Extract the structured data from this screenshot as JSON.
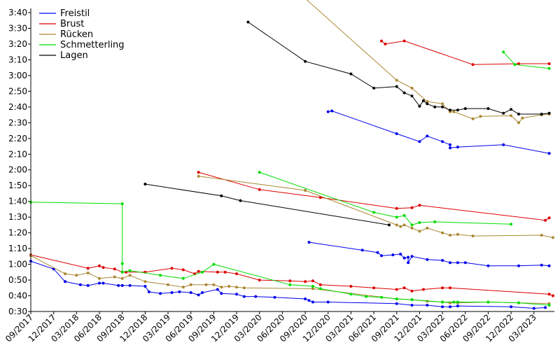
{
  "chart_data": {
    "type": "line",
    "y_axis": {
      "unit": "seconds",
      "ylim": [
        30,
        220
      ],
      "ticks": [
        {
          "value": 30,
          "label": "0:30"
        },
        {
          "value": 40,
          "label": "0:40"
        },
        {
          "value": 50,
          "label": "0:50"
        },
        {
          "value": 60,
          "label": "1:00"
        },
        {
          "value": 70,
          "label": "1:10"
        },
        {
          "value": 80,
          "label": "1:20"
        },
        {
          "value": 90,
          "label": "1:30"
        },
        {
          "value": 100,
          "label": "1:40"
        },
        {
          "value": 110,
          "label": "1:50"
        },
        {
          "value": 120,
          "label": "2:00"
        },
        {
          "value": 130,
          "label": "2:10"
        },
        {
          "value": 140,
          "label": "2:20"
        },
        {
          "value": 150,
          "label": "2:30"
        },
        {
          "value": 160,
          "label": "2:40"
        },
        {
          "value": 170,
          "label": "2:50"
        },
        {
          "value": 180,
          "label": "3:00"
        },
        {
          "value": 190,
          "label": "3:10"
        },
        {
          "value": 200,
          "label": "3:20"
        },
        {
          "value": 210,
          "label": "3:30"
        },
        {
          "value": 220,
          "label": "3:40"
        }
      ]
    },
    "x_axis": {
      "unit": "months since 09/2017",
      "xlim": [
        0,
        68.5
      ],
      "ticks": [
        {
          "value": 0,
          "label": "09/2017"
        },
        {
          "value": 3,
          "label": "12/2017"
        },
        {
          "value": 6,
          "label": "03/2018"
        },
        {
          "value": 9,
          "label": "06/2018"
        },
        {
          "value": 12,
          "label": "09/2018"
        },
        {
          "value": 15,
          "label": "12/2018"
        },
        {
          "value": 18,
          "label": "03/2019"
        },
        {
          "value": 21,
          "label": "06/2019"
        },
        {
          "value": 24,
          "label": "09/2019"
        },
        {
          "value": 27,
          "label": "12/2019"
        },
        {
          "value": 30,
          "label": "03/2020"
        },
        {
          "value": 33,
          "label": "06/2020"
        },
        {
          "value": 36,
          "label": "09/2020"
        },
        {
          "value": 39,
          "label": "12/2020"
        },
        {
          "value": 42,
          "label": "03/2021"
        },
        {
          "value": 45,
          "label": "06/2021"
        },
        {
          "value": 48,
          "label": "09/2021"
        },
        {
          "value": 51,
          "label": "12/2021"
        },
        {
          "value": 54,
          "label": "03/2022"
        },
        {
          "value": 57,
          "label": "06/2022"
        },
        {
          "value": 60,
          "label": "09/2022"
        },
        {
          "value": 63,
          "label": "12/2022"
        },
        {
          "value": 66,
          "label": "03/2023"
        }
      ]
    },
    "legend": {
      "position": "top-left"
    },
    "series": [
      {
        "name": "Freistil",
        "color": "#0000ee",
        "lines": [
          [
            [
              0,
              62
            ],
            [
              3,
              57
            ],
            [
              4.5,
              49
            ],
            [
              6.5,
              47
            ],
            [
              7.5,
              46.5
            ],
            [
              9,
              48
            ],
            [
              9.5,
              48
            ],
            [
              11.5,
              46.5
            ],
            [
              12,
              46.5
            ],
            [
              13,
              46.5
            ],
            [
              15,
              46
            ],
            [
              15.5,
              42.5
            ],
            [
              17,
              41.5
            ],
            [
              18.5,
              42
            ],
            [
              19.5,
              42.5
            ],
            [
              21,
              42
            ],
            [
              22,
              40.5
            ],
            [
              22.5,
              42
            ],
            [
              24.5,
              44
            ],
            [
              25,
              41.5
            ],
            [
              27,
              41
            ],
            [
              28,
              39.5
            ],
            [
              29.5,
              39.5
            ],
            [
              32,
              39
            ],
            [
              36,
              38
            ],
            [
              36.5,
              37
            ],
            [
              37,
              36
            ],
            [
              39,
              36
            ],
            [
              48,
              35
            ],
            [
              50,
              34
            ],
            [
              52,
              34
            ],
            [
              54,
              33
            ],
            [
              55,
              33
            ],
            [
              56,
              33.5
            ],
            [
              63,
              33
            ],
            [
              66,
              32
            ],
            [
              67.5,
              32.5
            ]
          ],
          [
            [
              36.5,
              74
            ],
            [
              43.5,
              69
            ],
            [
              45.5,
              67.5
            ],
            [
              46,
              65.5
            ],
            [
              47.5,
              66
            ],
            [
              48.5,
              66.5
            ],
            [
              49,
              64
            ],
            [
              49.5,
              64.5
            ],
            [
              49.5,
              61
            ],
            [
              50,
              65
            ],
            [
              52,
              63
            ],
            [
              54,
              62.5
            ],
            [
              55,
              61
            ],
            [
              56,
              61
            ],
            [
              57,
              61
            ],
            [
              60,
              59
            ],
            [
              64,
              59
            ],
            [
              67,
              59.5
            ],
            [
              68,
              59
            ]
          ],
          [
            [
              39,
              157
            ],
            [
              39.5,
              157.5
            ],
            [
              48,
              143
            ],
            [
              51,
              138
            ],
            [
              52,
              141.5
            ],
            [
              54,
              138
            ],
            [
              55,
              136
            ],
            [
              55,
              134
            ],
            [
              56,
              134.5
            ],
            [
              62,
              136
            ],
            [
              68,
              130.5
            ]
          ]
        ]
      },
      {
        "name": "Brust",
        "color": "#dd0000",
        "lines": [
          [
            [
              0,
              66
            ],
            [
              7.5,
              57.5
            ],
            [
              9,
              59
            ],
            [
              9.5,
              58
            ],
            [
              11,
              57
            ],
            [
              12,
              55
            ],
            [
              12.5,
              55
            ],
            [
              15,
              55
            ],
            [
              18.5,
              57.5
            ],
            [
              20,
              56.5
            ],
            [
              21.5,
              54
            ],
            [
              22,
              55.5
            ],
            [
              24.5,
              55
            ],
            [
              25.5,
              55
            ],
            [
              27,
              54
            ],
            [
              30,
              50
            ],
            [
              34,
              49.5
            ],
            [
              36,
              49
            ],
            [
              37,
              49.5
            ],
            [
              38,
              47
            ],
            [
              42,
              46
            ],
            [
              45,
              45
            ],
            [
              48,
              44
            ],
            [
              49,
              45
            ],
            [
              50,
              43
            ],
            [
              51.5,
              44
            ],
            [
              54,
              45
            ],
            [
              55,
              45
            ],
            [
              68,
              41
            ],
            [
              68.5,
              40
            ]
          ],
          [
            [
              22,
              118.5
            ],
            [
              30,
              107.5
            ],
            [
              38,
              102.5
            ],
            [
              48,
              95.5
            ],
            [
              50,
              96
            ],
            [
              51,
              97.5
            ],
            [
              67.5,
              88
            ],
            [
              68,
              89.5
            ]
          ],
          [
            [
              46,
              202
            ],
            [
              46.5,
              200
            ],
            [
              49,
              202
            ],
            [
              58,
              187
            ],
            [
              64,
              187.5
            ],
            [
              68,
              187.5
            ]
          ]
        ]
      },
      {
        "name": "Rücken",
        "color": "#aa8833",
        "lines": [
          [
            [
              0,
              65.5
            ],
            [
              4.5,
              54
            ],
            [
              6,
              53
            ],
            [
              7.5,
              54.5
            ],
            [
              9,
              51
            ],
            [
              11,
              52
            ],
            [
              12,
              51
            ],
            [
              13,
              53
            ],
            [
              15,
              49
            ],
            [
              18,
              47
            ],
            [
              20,
              45.5
            ],
            [
              21,
              47
            ],
            [
              23,
              47
            ],
            [
              24,
              47
            ],
            [
              25,
              45.5
            ],
            [
              26,
              46
            ],
            [
              27,
              45.5
            ],
            [
              28,
              45
            ],
            [
              37,
              44.5
            ],
            [
              48,
              38
            ],
            [
              50,
              37.5
            ],
            [
              52,
              36.5
            ],
            [
              54,
              36
            ],
            [
              55,
              35.5
            ],
            [
              56,
              35.5
            ],
            [
              60,
              36
            ],
            [
              64,
              35.5
            ],
            [
              68,
              35
            ]
          ],
          [
            [
              22,
              116
            ],
            [
              36,
              107
            ],
            [
              48,
              85
            ],
            [
              48.5,
              84
            ],
            [
              49,
              85
            ],
            [
              50,
              83
            ],
            [
              51,
              81
            ],
            [
              52,
              83
            ],
            [
              54,
              80
            ],
            [
              55,
              78.5
            ],
            [
              56,
              79
            ],
            [
              58,
              78
            ],
            [
              67,
              78.5
            ],
            [
              68.5,
              77
            ]
          ],
          [
            [
              36,
              229
            ],
            [
              48,
              177
            ],
            [
              50,
              172
            ],
            [
              52,
              163.5
            ],
            [
              54,
              162
            ],
            [
              55,
              157
            ],
            [
              55.5,
              157
            ],
            [
              58,
              152.5
            ],
            [
              59,
              154
            ],
            [
              63,
              154.5
            ],
            [
              64,
              150
            ],
            [
              64.5,
              153
            ],
            [
              67,
              155
            ],
            [
              68,
              155.5
            ]
          ]
        ]
      },
      {
        "name": "Schmetterling",
        "color": "#00dd00",
        "lines": [
          [
            [
              0,
              99.5
            ],
            [
              12,
              98.5
            ],
            [
              12,
              60.5
            ],
            [
              12,
              55
            ],
            [
              13,
              56
            ],
            [
              17,
              53
            ],
            [
              20,
              51
            ],
            [
              22.5,
              55
            ],
            [
              24,
              60
            ],
            [
              34,
              47
            ],
            [
              37,
              46
            ],
            [
              38,
              44.5
            ],
            [
              42,
              41
            ],
            [
              44,
              39.5
            ],
            [
              46,
              39
            ],
            [
              48,
              38
            ],
            [
              50,
              37.5
            ],
            [
              54,
              36
            ],
            [
              55.5,
              36
            ],
            [
              56,
              36
            ],
            [
              60,
              36
            ],
            [
              64,
              35.5
            ],
            [
              68,
              34
            ]
          ],
          [
            [
              30,
              118.5
            ],
            [
              45,
              93
            ],
            [
              48,
              90
            ],
            [
              49,
              91
            ],
            [
              50,
              85
            ],
            [
              51,
              86.5
            ],
            [
              53,
              87
            ],
            [
              63,
              85.5
            ]
          ],
          [
            [
              62,
              195
            ],
            [
              63.5,
              187
            ],
            [
              68,
              184.5
            ]
          ]
        ]
      },
      {
        "name": "Lagen",
        "color": "#000000",
        "lines": [
          [
            [
              15,
              111
            ],
            [
              25,
              103.5
            ],
            [
              27.5,
              100.5
            ],
            [
              47,
              85
            ]
          ],
          [
            [
              28.5,
              214
            ],
            [
              36,
              189
            ],
            [
              42,
              181
            ],
            [
              45,
              172
            ],
            [
              48,
              173
            ],
            [
              49,
              169
            ],
            [
              50,
              167
            ],
            [
              51,
              160.5
            ],
            [
              51.5,
              164
            ],
            [
              52,
              162
            ],
            [
              53,
              160
            ],
            [
              54,
              160
            ],
            [
              55,
              158
            ],
            [
              56,
              158
            ],
            [
              57,
              159
            ],
            [
              60,
              159
            ],
            [
              62,
              156
            ],
            [
              63,
              158.5
            ],
            [
              64,
              155.5
            ],
            [
              67,
              155.5
            ],
            [
              68,
              156
            ]
          ]
        ]
      }
    ]
  }
}
